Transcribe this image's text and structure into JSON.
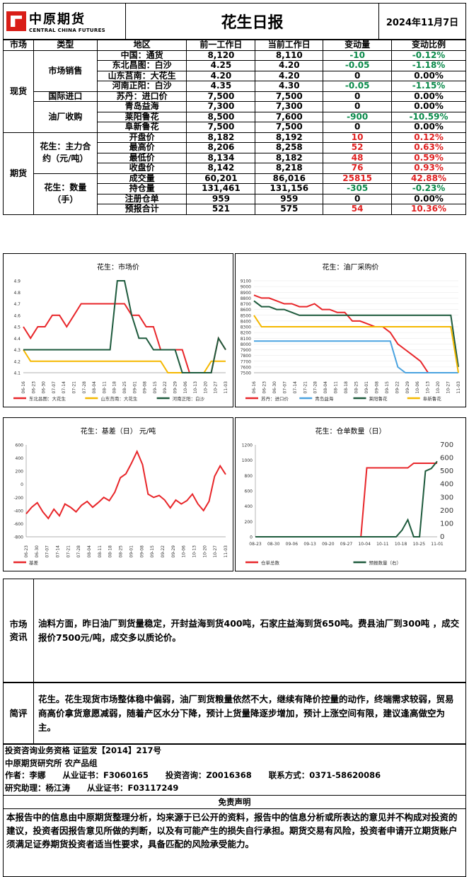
{
  "header": {
    "logo_cn": "中原期货",
    "logo_en": "CENTRAL CHINA FUTURES",
    "title": "花生日报",
    "date": "2024年11月7日"
  },
  "table": {
    "headers": [
      "市场",
      "类型",
      "地区",
      "前一工作日",
      "当前工作日",
      "变动量",
      "变动比例"
    ],
    "spot_label": "现货",
    "futures_label": "期货",
    "groups": {
      "market_sales": "市场销售",
      "import": "国际进口",
      "oil_mill": "油厂收购",
      "contract": "花生：主力合约（元/吨）",
      "quantity": "花生：数量（手）"
    },
    "rows": [
      {
        "region": "中国：通货",
        "prev": "8,120",
        "cur": "8,110",
        "chg": "-10",
        "pct": "-0.12%",
        "dir": "neg"
      },
      {
        "region": "东北昌图：白沙",
        "prev": "4.25",
        "cur": "4.20",
        "chg": "-0.05",
        "pct": "-1.18%",
        "dir": "neg"
      },
      {
        "region": "山东莒南：大花生",
        "prev": "4.20",
        "cur": "4.20",
        "chg": "0",
        "pct": "0.00%",
        "dir": "zero"
      },
      {
        "region": "河南正阳：白沙",
        "prev": "4.35",
        "cur": "4.30",
        "chg": "-0.05",
        "pct": "-1.15%",
        "dir": "neg"
      },
      {
        "region": "苏丹：进口价",
        "prev": "7,500",
        "cur": "7,500",
        "chg": "0",
        "pct": "0.00%",
        "dir": "zero"
      },
      {
        "region": "青岛益海",
        "prev": "7,300",
        "cur": "7,300",
        "chg": "0",
        "pct": "0.00%",
        "dir": "zero"
      },
      {
        "region": "莱阳鲁花",
        "prev": "8,500",
        "cur": "7,600",
        "chg": "-900",
        "pct": "-10.59%",
        "dir": "neg"
      },
      {
        "region": "阜新鲁花",
        "prev": "7,500",
        "cur": "7,500",
        "chg": "0",
        "pct": "0.00%",
        "dir": "zero"
      },
      {
        "region": "开盘价",
        "prev": "8,182",
        "cur": "8,192",
        "chg": "10",
        "pct": "0.12%",
        "dir": "pos"
      },
      {
        "region": "最高价",
        "prev": "8,206",
        "cur": "8,258",
        "chg": "52",
        "pct": "0.63%",
        "dir": "pos"
      },
      {
        "region": "最低价",
        "prev": "8,134",
        "cur": "8,182",
        "chg": "48",
        "pct": "0.59%",
        "dir": "pos"
      },
      {
        "region": "收盘价",
        "prev": "8,142",
        "cur": "8,218",
        "chg": "76",
        "pct": "0.93%",
        "dir": "pos"
      },
      {
        "region": "成交量",
        "prev": "60,201",
        "cur": "86,016",
        "chg": "25815",
        "pct": "42.88%",
        "dir": "pos"
      },
      {
        "region": "持仓量",
        "prev": "131,461",
        "cur": "131,156",
        "chg": "-305",
        "pct": "-0.23%",
        "dir": "neg"
      },
      {
        "region": "注册仓单",
        "prev": "959",
        "cur": "959",
        "chg": "0",
        "pct": "0.00%",
        "dir": "zero"
      },
      {
        "region": "预报合计",
        "prev": "521",
        "cur": "575",
        "chg": "54",
        "pct": "10.36%",
        "dir": "pos"
      }
    ]
  },
  "colors": {
    "neg": "#0a8a4a",
    "pos": "#e02020",
    "red": "#e8262a",
    "yellow": "#f5b800",
    "darkgreen": "#1d5a3c",
    "blue": "#4aa3e0"
  },
  "chart_data": [
    {
      "type": "line",
      "title": "花生：市场价",
      "xticks": [
        "06-16",
        "06-23",
        "06-30",
        "07-07",
        "07-14",
        "07-21",
        "07-28",
        "08-04",
        "08-11",
        "08-18",
        "08-25",
        "09-01",
        "09-08",
        "09-15",
        "09-22",
        "09-29",
        "10-06",
        "10-13",
        "10-20",
        "10-27",
        "11-03"
      ],
      "yticks": [
        "4.9",
        "4.8",
        "4.7",
        "4.6",
        "4.5",
        "4.4",
        "4.3",
        "4.2",
        "4.1"
      ],
      "ylim": [
        4.1,
        4.9
      ],
      "series": [
        {
          "name": "东北昌图：大花生",
          "color": "red",
          "values": [
            4.5,
            4.4,
            4.5,
            4.5,
            4.6,
            4.6,
            4.5,
            4.6,
            4.7,
            4.7,
            4.7,
            4.7,
            4.7,
            4.7,
            4.7,
            4.6,
            4.6,
            4.5,
            4.5,
            4.3,
            4.3,
            4.3,
            4.3,
            4.1,
            4.1,
            4.1,
            4.1,
            4.4,
            4.3
          ]
        },
        {
          "name": "山东莒南：大花生",
          "color": "yellow",
          "values": [
            4.3,
            4.2,
            4.2,
            4.2,
            4.2,
            4.2,
            4.2,
            4.2,
            4.2,
            4.2,
            4.2,
            4.2,
            4.2,
            4.2,
            4.2,
            4.2,
            4.2,
            4.2,
            4.2,
            4.2,
            4.1,
            4.1,
            4.1,
            4.1,
            4.1,
            4.1,
            4.2,
            4.2,
            4.2
          ]
        },
        {
          "name": "河南正阳：白沙",
          "color": "darkgreen",
          "values": [
            4.3,
            4.3,
            4.3,
            4.3,
            4.3,
            4.3,
            4.3,
            4.3,
            4.3,
            4.3,
            4.3,
            4.3,
            4.3,
            4.9,
            4.9,
            4.6,
            4.4,
            4.4,
            4.3,
            4.3,
            4.3,
            4.3,
            4.1,
            4.1,
            4.1,
            4.1,
            4.1,
            4.4,
            4.3
          ]
        }
      ]
    },
    {
      "type": "line",
      "title": "花生：油厂采购价",
      "xticks": [
        "06-16",
        "06-23",
        "06-30",
        "07-07",
        "07-14",
        "07-21",
        "07-28",
        "08-04",
        "08-11",
        "08-18",
        "08-25",
        "09-01",
        "09-08",
        "09-15",
        "09-22",
        "09-29",
        "10-06",
        "10-13",
        "10-20",
        "10-27",
        "11-03"
      ],
      "yticks": [
        "9100",
        "9000",
        "8900",
        "8800",
        "8700",
        "8600",
        "8500",
        "8400",
        "8300",
        "8200",
        "8100",
        "8000",
        "7900",
        "7800",
        "7700",
        "7600",
        "7500"
      ],
      "ylim": [
        7500,
        9100
      ],
      "series": [
        {
          "name": "苏丹：进口价",
          "color": "red",
          "values": [
            8850,
            8800,
            8800,
            8750,
            8700,
            8700,
            8650,
            8650,
            8700,
            8600,
            8600,
            8550,
            8550,
            8400,
            8400,
            8350,
            8300,
            8300,
            8200,
            8000,
            7900,
            7800,
            7700,
            7500,
            7500,
            7500,
            7500,
            7500
          ]
        },
        {
          "name": "青岛益海",
          "color": "blue",
          "values": [
            8050,
            8050,
            8050,
            8050,
            8050,
            8050,
            8050,
            8050,
            8050,
            8050,
            8050,
            8050,
            8050,
            8050,
            8050,
            8050,
            8050,
            8050,
            8050,
            7600,
            7500,
            7500,
            7500,
            7500,
            7500,
            7500,
            7500,
            7500
          ]
        },
        {
          "name": "莱阳鲁花",
          "color": "darkgreen",
          "values": [
            8750,
            8650,
            8650,
            8600,
            8600,
            8550,
            8500,
            8500,
            8500,
            8500,
            8500,
            8500,
            8500,
            8500,
            8500,
            8500,
            8500,
            8500,
            8500,
            8500,
            8500,
            8500,
            8500,
            8500,
            8500,
            8500,
            8500,
            7600
          ]
        },
        {
          "name": "阜新鲁花",
          "color": "yellow",
          "values": [
            8500,
            8300,
            8300,
            8300,
            8300,
            8300,
            8300,
            8300,
            8300,
            8300,
            8300,
            8300,
            8300,
            8300,
            8300,
            8300,
            8300,
            8300,
            8300,
            8300,
            8300,
            8300,
            8300,
            8300,
            8300,
            8300,
            8300,
            7500
          ]
        }
      ]
    },
    {
      "type": "line",
      "title": "花生：基差（日） 元/吨",
      "xticks": [
        "06-23",
        "06-30",
        "07-07",
        "07-14",
        "07-21",
        "07-28",
        "08-04",
        "08-11",
        "08-18",
        "08-25",
        "09-01",
        "09-08",
        "09-15",
        "09-22",
        "09-29",
        "10-06",
        "10-13",
        "10-20",
        "10-27",
        "11-03"
      ],
      "yticks": [
        "600",
        "400",
        "200",
        "0",
        "-200",
        "-400",
        "-600",
        "-800"
      ],
      "ylim": [
        -800,
        600
      ],
      "series": [
        {
          "name": "基差",
          "color": "red",
          "values": [
            -450,
            -350,
            -280,
            -420,
            -520,
            -380,
            -480,
            -300,
            -350,
            -420,
            -320,
            -260,
            -350,
            -280,
            -200,
            -250,
            -120,
            100,
            160,
            320,
            500,
            300,
            -150,
            -200,
            -170,
            -240,
            -360,
            -240,
            -300,
            -250,
            -150,
            -300,
            -400,
            -260,
            120,
            280,
            150
          ]
        }
      ]
    },
    {
      "type": "line",
      "title": "花生：仓单数量（日）",
      "xticks": [
        "08-23",
        "08-30",
        "09-06",
        "09-13",
        "09-20",
        "09-27",
        "10-04",
        "10-11",
        "10-18",
        "10-25",
        "11-01"
      ],
      "yticks_left": [
        "1200",
        "1000",
        "800",
        "600",
        "400",
        "200",
        "0"
      ],
      "yticks_right": [
        "700",
        "600",
        "500",
        "400",
        "300",
        "200",
        "100",
        "0"
      ],
      "series": [
        {
          "name": "仓单总数",
          "color": "red",
          "values": [
            0,
            0,
            0,
            0,
            0,
            0,
            0,
            0,
            0,
            0,
            0,
            0,
            0,
            0,
            0,
            0,
            0,
            0,
            0,
            900,
            900,
            900,
            900,
            900,
            900,
            900,
            900,
            960,
            960,
            960,
            960,
            960
          ]
        },
        {
          "name": "预报数量（右）",
          "color": "darkgreen",
          "values": [
            0,
            0,
            0,
            0,
            0,
            0,
            0,
            0,
            0,
            0,
            0,
            0,
            0,
            0,
            0,
            0,
            0,
            0,
            0,
            0,
            0,
            0,
            0,
            0,
            0,
            50,
            130,
            0,
            0,
            500,
            520,
            575
          ]
        }
      ]
    }
  ],
  "market_info": {
    "label": "市场资讯",
    "text": "油料方面，昨日油厂到货量稳定，开封益海到货400吨，石家庄益海到货650吨。费县油厂到300吨 ，成交报价7500元/吨，成交多以质论价。"
  },
  "comment": {
    "label": "简评",
    "text": "花生。花生现货市场整体稳中偏弱，油厂到货粮量依然不大，继续有降价控量的动作，终端需求较弱，贸易商高价拿货意愿减弱，随着产区水分下降，预计上货量降逐步增加，预计上涨空间有限，建议逢高做空为主。"
  },
  "footer": {
    "line1": "投资咨询业务资格   证监发【2014】217号",
    "line2": "中原期货研究所   农产品组",
    "line3": "作者：李娜      从业证书：F3060165      投资咨询：Z0016368      联系方式：0371-58620086",
    "line4": "研究助理：杨江涛      从业证书：F03117249",
    "disclaimer_title": "免责声明",
    "disclaimer": "本报告中的信息由中原期货整理分析，均来源于已公开的资料，报告中的信息分析或所表达的意见并不构成对投资的建议，投资者因报告意见所做的判断，以及有可能产生的损失自行承担。期货交易有风险，投资者申请开立期货账户须满足证券期货投资者适当性要求，具备匹配的风险承受能力。"
  }
}
